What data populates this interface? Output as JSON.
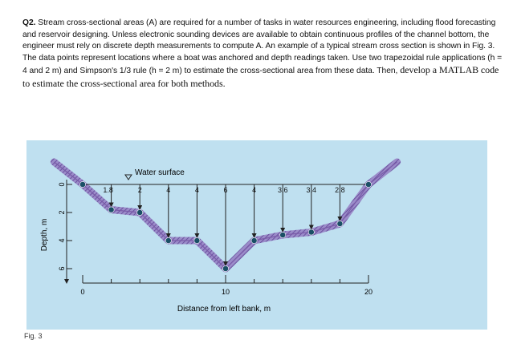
{
  "question": {
    "number": "Q2.",
    "intro": "Stream cross-sectional areas (A) are required for a number of tasks in water resources engineering, including flood forecasting and reservoir designing. Unless electronic sounding devices are available to obtain continuous profiles of the channel bottom, the engineer must rely on discrete depth measurements to compute A. An example of a typical stream cross section is shown in Fig. 3. The data points represent locations where a boat was anchored and depth readings taken. Use two trapezoidal rule applications (h = 4 and 2 m) and Simpson's 1/3 rule (h = 2 m) to estimate the cross-sectional area from these data. Then,",
    "matlab_part": "develop a MATLAB",
    "closing": "code to estimate the cross-sectional area for both methods."
  },
  "figure": {
    "water_surface_label": "Water surface",
    "y_axis_label": "Depth, m",
    "x_axis_label": "Distance from left bank, m",
    "y_ticks": [
      "0",
      "2",
      "4",
      "6"
    ],
    "x_ticks": [
      "0",
      "10",
      "20"
    ],
    "caption": "Fig. 3",
    "colors": {
      "background": "#bfe0f0",
      "bottom": "#7a5ba8",
      "points": "#1a4f66"
    },
    "depth_labels": [
      "1.8",
      "2",
      "4",
      "4",
      "6",
      "4",
      "3.6",
      "3.4",
      "2.8"
    ]
  },
  "chart_data": {
    "type": "line",
    "title": "",
    "xlabel": "Distance from left bank, m",
    "ylabel": "Depth, m",
    "x": [
      0,
      2,
      4,
      6,
      8,
      10,
      12,
      14,
      16,
      18,
      20
    ],
    "depth": [
      0,
      1.8,
      2,
      4,
      4,
      6,
      4,
      3.6,
      3.4,
      2.8,
      0
    ],
    "xlim": [
      0,
      20
    ],
    "ylim": [
      0,
      6
    ],
    "y_inverted": true,
    "series": [
      {
        "values": [
          0,
          1.8,
          2,
          4,
          4,
          6,
          4,
          3.6,
          3.4,
          2.8,
          0
        ]
      }
    ]
  }
}
